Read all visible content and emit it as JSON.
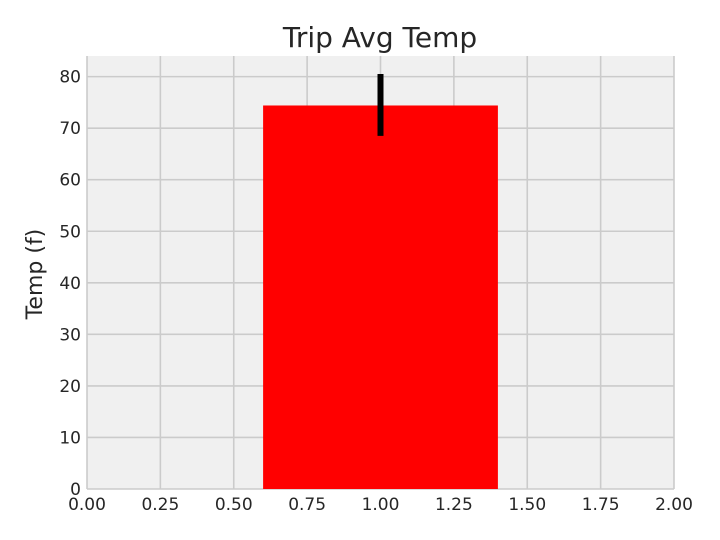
{
  "chart_data": {
    "type": "bar",
    "title": "Trip Avg Temp",
    "xlabel": "",
    "ylabel": "Temp (f)",
    "xlim": [
      0,
      2
    ],
    "ylim": [
      0,
      84
    ],
    "xticks": [
      0.0,
      0.25,
      0.5,
      0.75,
      1.0,
      1.25,
      1.5,
      1.75,
      2.0
    ],
    "xtick_labels": [
      "0.00",
      "0.25",
      "0.50",
      "0.75",
      "1.00",
      "1.25",
      "1.50",
      "1.75",
      "2.00"
    ],
    "yticks": [
      0,
      10,
      20,
      30,
      40,
      50,
      60,
      70,
      80
    ],
    "ytick_labels": [
      "0",
      "10",
      "20",
      "30",
      "40",
      "50",
      "60",
      "70",
      "80"
    ],
    "grid": true,
    "bars": [
      {
        "x": 1.0,
        "width": 0.8,
        "value": 74.4,
        "error_low": 68.5,
        "error_high": 80.5,
        "color": "#ff0000"
      }
    ],
    "error_color": "#000000",
    "background": "#f0f0f0",
    "grid_color": "#cbcbcb"
  }
}
